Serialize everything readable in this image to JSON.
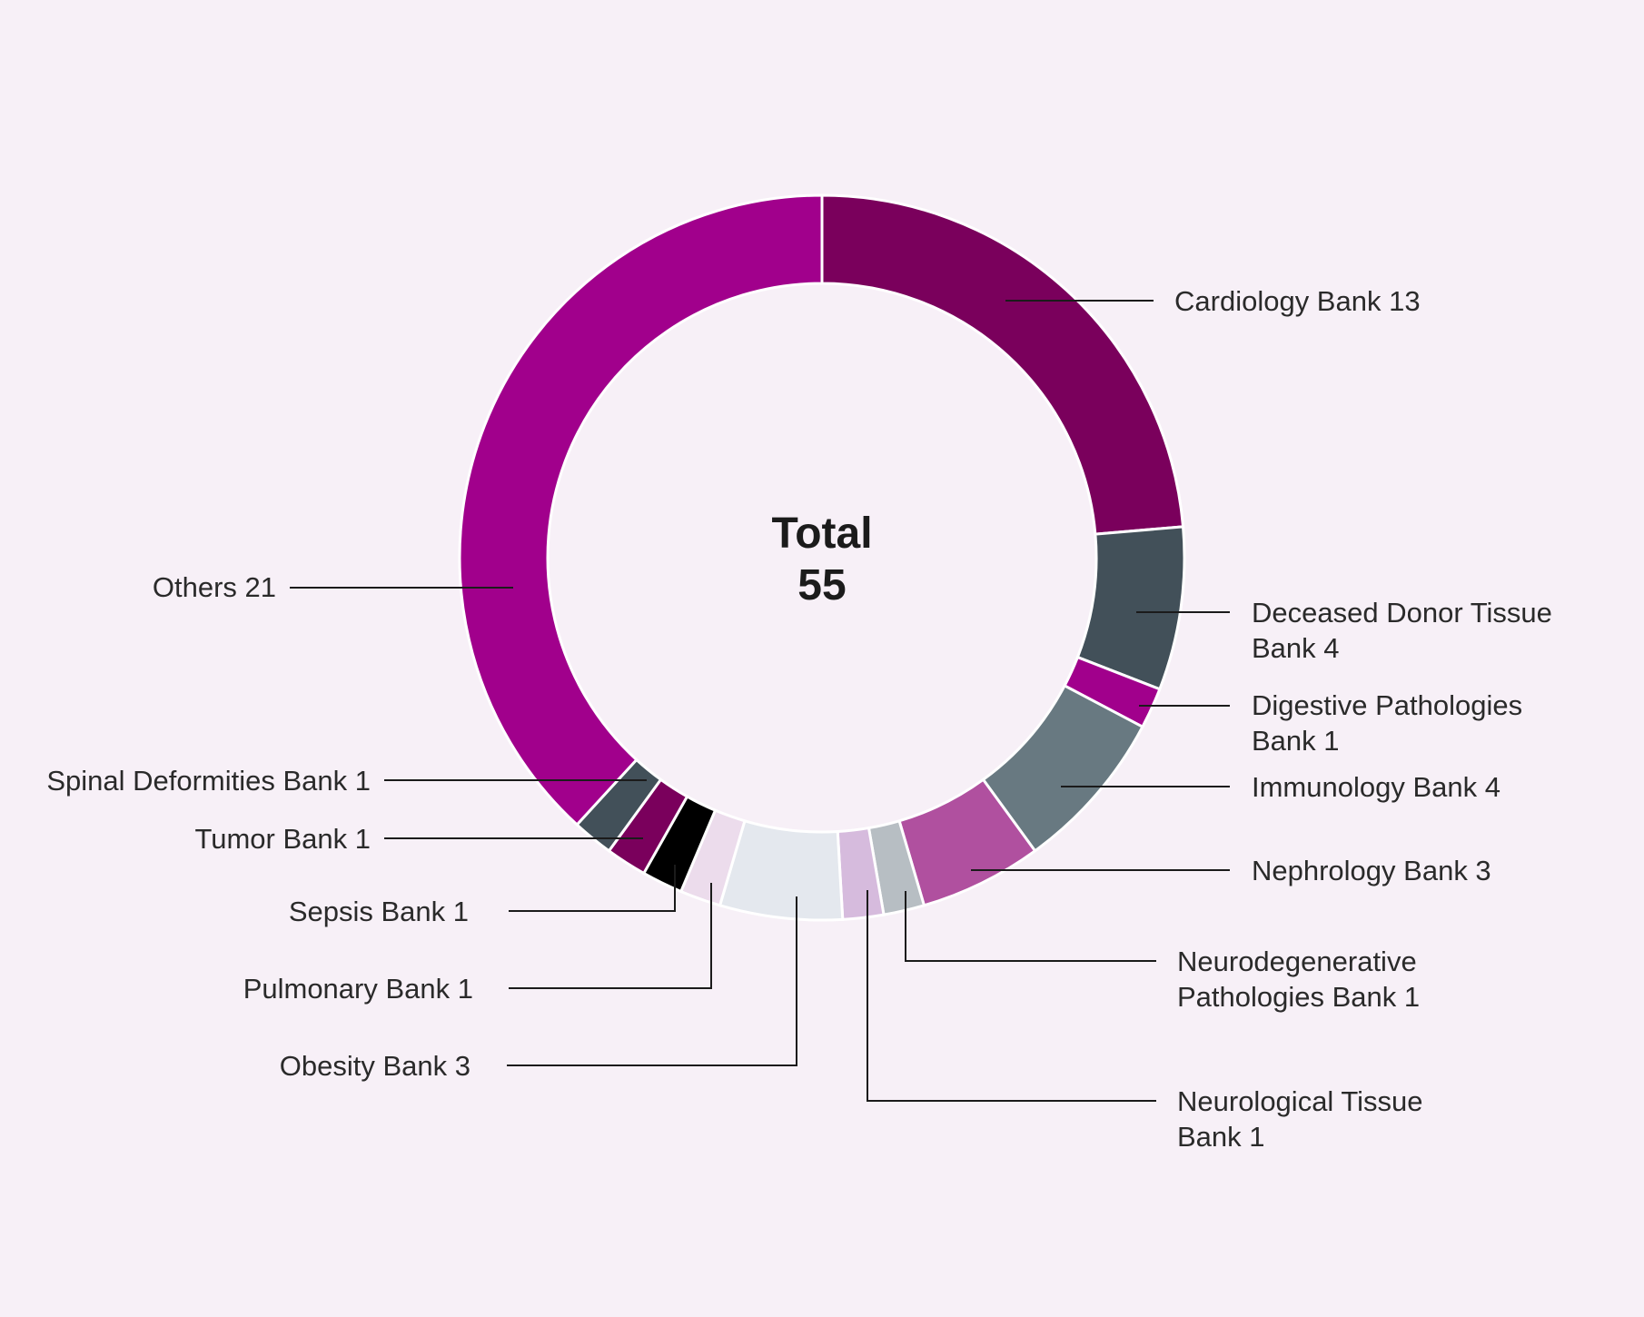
{
  "chart_data": {
    "type": "pie",
    "variant": "donut",
    "center_label": {
      "title": "Total",
      "value": "55"
    },
    "slices": [
      {
        "label": "Cardiology Bank",
        "value": 13,
        "color": "#7a005c",
        "label_lines": [
          "Cardiology Bank 13"
        ]
      },
      {
        "label": "Deceased Donor Tissue Bank",
        "value": 4,
        "color": "#425059",
        "label_lines": [
          "Deceased Donor Tissue",
          "Bank 4"
        ]
      },
      {
        "label": "Digestive Pathologies Bank",
        "value": 1,
        "color": "#a1008c",
        "label_lines": [
          "Digestive Pathologies",
          "Bank 1"
        ]
      },
      {
        "label": "Immunology Bank",
        "value": 4,
        "color": "#687981",
        "label_lines": [
          "Immunology Bank 4"
        ]
      },
      {
        "label": "Nephrology Bank",
        "value": 3,
        "color": "#b0509f",
        "label_lines": [
          "Nephrology Bank 3"
        ]
      },
      {
        "label": "Neurodegenerative Pathologies Bank",
        "value": 1,
        "color": "#b7bec3",
        "label_lines": [
          "Neurodegenerative",
          "Pathologies Bank 1"
        ]
      },
      {
        "label": "Neurological Tissue Bank",
        "value": 1,
        "color": "#d6bbdd",
        "label_lines": [
          "Neurological Tissue",
          "Bank 1"
        ]
      },
      {
        "label": "Obesity Bank",
        "value": 3,
        "color": "#e4e8ee",
        "label_lines": [
          "Obesity Bank 3"
        ]
      },
      {
        "label": "Pulmonary Bank",
        "value": 1,
        "color": "#ecdcec",
        "label_lines": [
          "Pulmonary Bank 1"
        ]
      },
      {
        "label": "Sepsis Bank",
        "value": 1,
        "color": "#000000",
        "label_lines": [
          "Sepsis Bank 1"
        ]
      },
      {
        "label": "Tumor Bank",
        "value": 1,
        "color": "#7a005c",
        "label_lines": [
          "Tumor Bank 1"
        ]
      },
      {
        "label": "Spinal Deformities Bank",
        "value": 1,
        "color": "#425059",
        "label_lines": [
          "Spinal Deformities Bank 1"
        ]
      },
      {
        "label": "Others",
        "value": 21,
        "color": "#a1008c",
        "label_lines": [
          "Others 21"
        ]
      }
    ]
  }
}
